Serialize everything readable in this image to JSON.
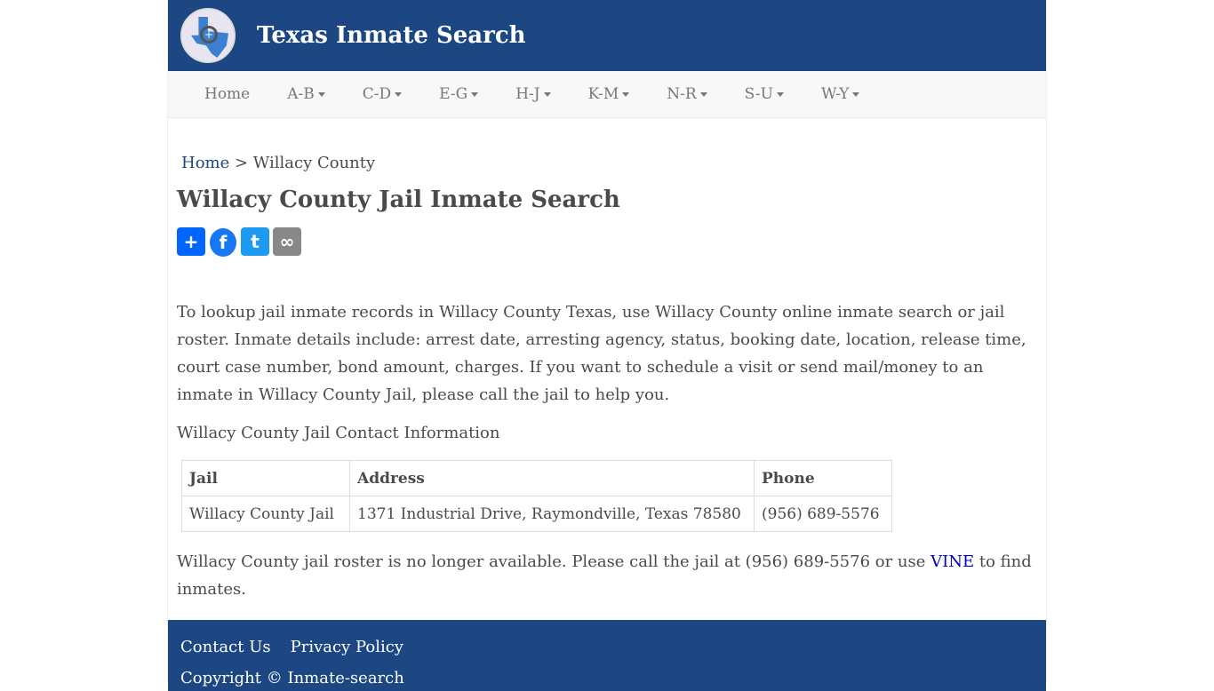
{
  "header": {
    "title": "Texas Inmate Search"
  },
  "nav": [
    "Home",
    "A-B",
    "C-D",
    "E-G",
    "H-J",
    "K-M",
    "N-R",
    "S-U",
    "W-Y"
  ],
  "breadcrumb": {
    "home": "Home",
    "sep": " > ",
    "current": "Willacy County"
  },
  "page_title": "Willacy County Jail Inmate Search",
  "share": {
    "colors": {
      "add": "#0166ff",
      "facebook": "#1877f2",
      "twitter": "#1d9bf0",
      "copy": "#888888"
    }
  },
  "intro": "To lookup jail inmate records in Willacy County Texas, use Willacy County online inmate search or jail roster. Inmate details include: arrest date, arresting agency, status, booking date, location, release time, court case number, bond amount, charges. If you want to schedule a visit or send mail/money to an inmate in Willacy County Jail, please call the jail to help you.",
  "contact_heading": "Willacy County Jail Contact Information",
  "table": {
    "headers": [
      "Jail",
      "Address",
      "Phone"
    ],
    "row": [
      "Willacy County Jail",
      "1371 Industrial Drive, Raymondville, Texas 78580",
      "(956) 689-5576"
    ]
  },
  "note": {
    "before": "Willacy County jail roster is no longer available. Please call the jail at (956) 689-5576 or use ",
    "link": "VINE",
    "after": " to find inmates."
  },
  "footer": {
    "contact": "Contact Us",
    "privacy": "Privacy Policy",
    "copyright": "Copyright © Inmate-search"
  }
}
